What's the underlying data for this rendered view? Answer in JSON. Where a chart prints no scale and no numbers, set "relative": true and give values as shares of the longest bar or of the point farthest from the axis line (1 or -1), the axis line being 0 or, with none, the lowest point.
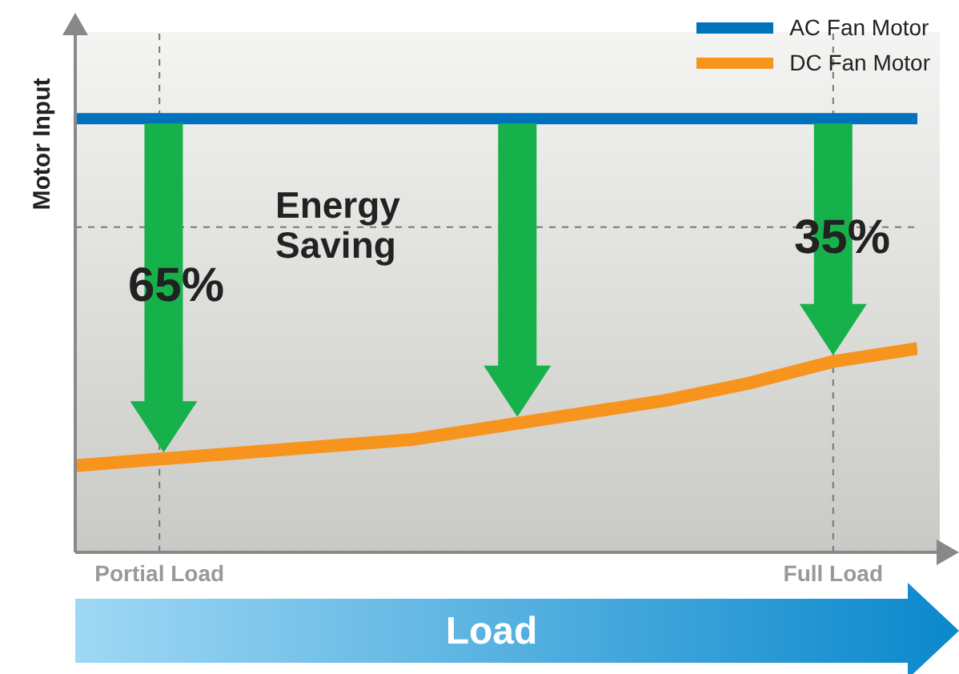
{
  "chart_data": {
    "type": "line",
    "relative": true,
    "ylabel": "Motor Input",
    "xlabel": "Load",
    "categories": [
      null,
      "Portial Load",
      null,
      null,
      null,
      null,
      null,
      null,
      null,
      "Full Load",
      null
    ],
    "series": [
      {
        "name": "AC Fan Motor",
        "color": "#0072bc",
        "values": [
          1,
          1,
          1,
          1,
          1,
          1,
          1,
          1,
          1,
          1,
          1
        ]
      },
      {
        "name": "DC Fan Motor",
        "color": "#f7941d",
        "values": [
          0.2,
          0.215,
          0.23,
          0.245,
          0.26,
          0.29,
          0.32,
          0.35,
          0.39,
          0.44,
          0.47
        ]
      }
    ],
    "ref_lines": [
      {
        "axis": "y",
        "value": 0.75,
        "color": "#777777",
        "line_style": "dashed"
      },
      {
        "axis": "x",
        "value": "Portial Load",
        "color": "#777777",
        "line_style": "dashed"
      },
      {
        "axis": "x",
        "value": "Full Load",
        "color": "#777777",
        "line_style": "dashed"
      }
    ],
    "annotations": [
      "Energy Saving",
      "65%",
      "35%"
    ],
    "legend": "top right",
    "grid": false,
    "marker": "none",
    "line_style": "solid"
  }
}
